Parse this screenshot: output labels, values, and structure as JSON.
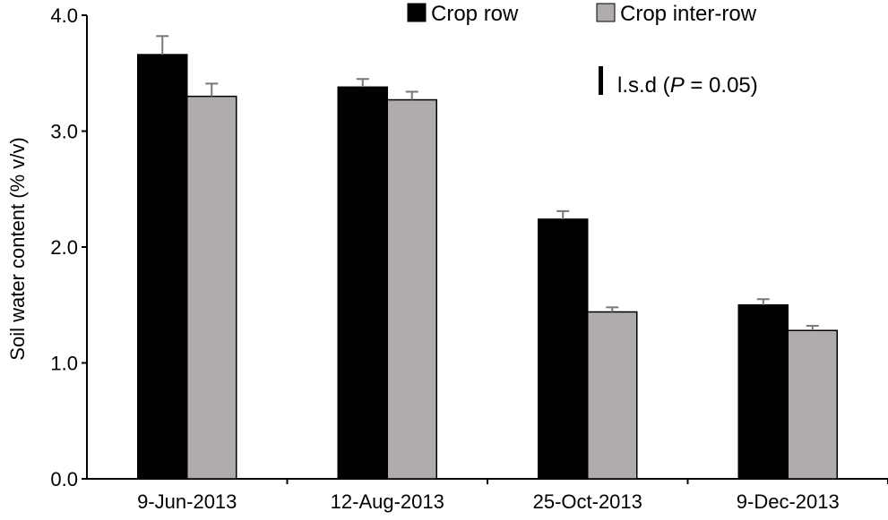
{
  "chart_data": {
    "type": "bar",
    "title": "",
    "xlabel": "",
    "ylabel": "Soil water content (% v/v)",
    "ylim": [
      0,
      4
    ],
    "yticks": [
      "0.0",
      "1.0",
      "2.0",
      "3.0",
      "4.0"
    ],
    "categories": [
      "9-Jun-2013",
      "12-Aug-2013",
      "25-Oct-2013",
      "9-Dec-2013"
    ],
    "series": [
      {
        "name": "Crop row",
        "color": "#000000",
        "values": [
          3.66,
          3.38,
          2.24,
          1.5
        ],
        "errors": [
          0.16,
          0.07,
          0.07,
          0.05
        ]
      },
      {
        "name": "Crop inter-row",
        "color": "#b0acac",
        "values": [
          3.3,
          3.27,
          1.44,
          1.28
        ],
        "errors": [
          0.11,
          0.07,
          0.04,
          0.04
        ]
      }
    ],
    "legend_position": "top-right",
    "grid": false,
    "annotation": {
      "prefix": "l.s.d (",
      "italic": "P",
      "suffix": " = 0.05)"
    }
  }
}
